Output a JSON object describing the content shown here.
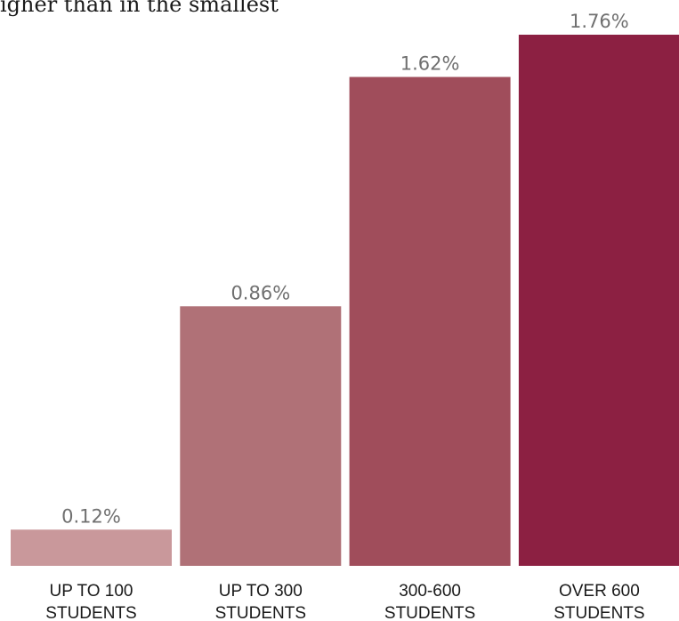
{
  "subtitle": "igher than in the smallest",
  "chart_data": {
    "type": "bar",
    "categories": [
      [
        "UP TO 100",
        "STUDENTS"
      ],
      [
        "UP TO 300",
        "STUDENTS"
      ],
      [
        "300-600",
        "STUDENTS"
      ],
      [
        "OVER 600",
        "STUDENTS"
      ]
    ],
    "values": [
      0.12,
      0.86,
      1.62,
      1.76
    ],
    "value_labels": [
      "0.12%",
      "0.86%",
      "1.62%",
      "1.76%"
    ],
    "colors": [
      "#c9989b",
      "#b07177",
      "#a04d5b",
      "#8c2042"
    ],
    "ylim": [
      0,
      1.76
    ],
    "grid": false,
    "axes_visible": false
  }
}
